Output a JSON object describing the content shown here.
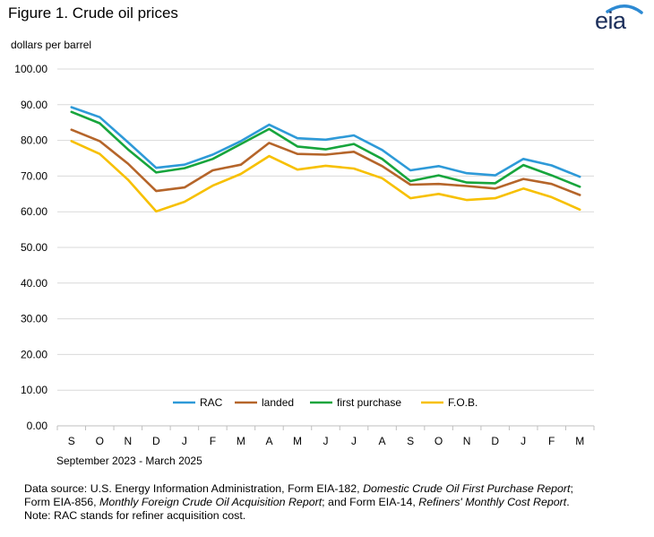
{
  "title": "Figure 1. Crude oil prices",
  "logo_text": "eia",
  "units_label": "dollars per barrel",
  "date_range": "September 2023   -   March 2025",
  "footer": {
    "line1_a": "Data source: U.S. Energy Information Administration, Form EIA-182, ",
    "line1_b": "Domestic Crude Oil First Purchase Report",
    "line1_c": ";",
    "line2_a": "Form EIA-856, ",
    "line2_b": "Monthly Foreign Crude Oil Acquisition Report",
    "line2_c": "; and Form EIA-14, ",
    "line2_d": "Refiners' Monthly Cost Report",
    "line2_e": ".",
    "line3": "Note: RAC stands for refiner acquisition cost."
  },
  "chart_data": {
    "type": "line",
    "categories": [
      "S",
      "O",
      "N",
      "D",
      "J",
      "F",
      "M",
      "A",
      "M",
      "J",
      "J",
      "A",
      "S",
      "O",
      "N",
      "D",
      "J",
      "F",
      "M"
    ],
    "ylim": [
      0,
      100
    ],
    "yticks": [
      "0.00",
      "10.00",
      "20.00",
      "30.00",
      "40.00",
      "50.00",
      "60.00",
      "70.00",
      "80.00",
      "90.00",
      "100.00"
    ],
    "grid": true,
    "legend_position": "bottom-center inside plot",
    "series": [
      {
        "name": "RAC",
        "color": "#2e9ad8",
        "values": [
          89.3,
          86.5,
          79.5,
          72.3,
          73.2,
          76.0,
          79.8,
          84.4,
          80.6,
          80.2,
          81.4,
          77.3,
          71.6,
          72.8,
          70.8,
          70.2,
          74.8,
          73.0,
          69.8
        ]
      },
      {
        "name": "landed",
        "color": "#b5652a",
        "values": [
          83.0,
          79.8,
          73.5,
          65.8,
          66.8,
          71.6,
          73.2,
          79.3,
          76.2,
          76.0,
          76.8,
          72.8,
          67.6,
          67.8,
          67.2,
          66.5,
          69.2,
          67.8,
          64.7
        ]
      },
      {
        "name": "first purchase",
        "color": "#17a53c",
        "values": [
          88.0,
          84.8,
          77.5,
          71.0,
          72.2,
          74.8,
          79.0,
          83.2,
          78.3,
          77.5,
          79.0,
          74.8,
          68.6,
          70.2,
          68.2,
          68.0,
          73.1,
          70.2,
          67.0
        ]
      },
      {
        "name": "F.O.B.",
        "color": "#f7c000",
        "values": [
          79.8,
          76.2,
          69.0,
          60.1,
          62.8,
          67.3,
          70.6,
          75.6,
          71.8,
          72.9,
          72.1,
          69.4,
          63.8,
          65.0,
          63.3,
          63.8,
          66.5,
          64.1,
          60.6
        ]
      }
    ]
  }
}
